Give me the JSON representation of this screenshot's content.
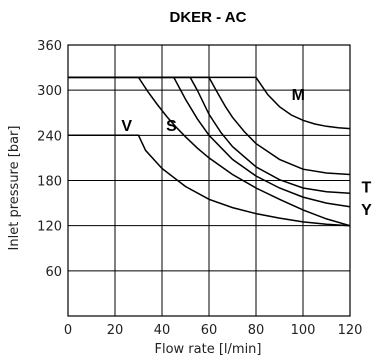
{
  "chart_data": {
    "type": "line",
    "title": "DKER - AC",
    "xlabel": "Flow rate [l/min]",
    "ylabel": "Inlet pressure [bar]",
    "xlim": [
      0,
      120
    ],
    "ylim": [
      0,
      360
    ],
    "xticks": [
      0,
      20,
      40,
      60,
      80,
      100,
      120
    ],
    "yticks": [
      60,
      120,
      180,
      240,
      300,
      360
    ],
    "grid": true,
    "series": [
      {
        "name": "V",
        "x": [
          0,
          30,
          33,
          40,
          50,
          60,
          70,
          80,
          90,
          100,
          110,
          120
        ],
        "y": [
          240,
          240,
          220,
          196,
          172,
          155,
          144,
          136,
          130,
          125,
          122,
          120
        ]
      },
      {
        "name": "S",
        "x": [
          0,
          45,
          50,
          55,
          60,
          70,
          80,
          90,
          100,
          110,
          120
        ],
        "y": [
          317,
          317,
          288,
          262,
          240,
          208,
          186,
          170,
          158,
          150,
          145
        ]
      },
      {
        "name": "",
        "x": [
          0,
          52,
          55,
          60,
          65,
          70,
          80,
          90,
          100,
          110,
          120
        ],
        "y": [
          317,
          317,
          300,
          268,
          244,
          225,
          198,
          181,
          170,
          165,
          163
        ]
      },
      {
        "name": "",
        "x": [
          0,
          60,
          63,
          67,
          70,
          75,
          80,
          90,
          100,
          110,
          120
        ],
        "y": [
          317,
          317,
          300,
          278,
          264,
          245,
          229,
          208,
          195,
          190,
          188
        ]
      },
      {
        "name": "",
        "x": [
          30,
          34,
          38,
          42,
          46,
          50,
          55,
          60,
          70,
          80,
          90,
          100,
          110,
          120
        ],
        "y": [
          317,
          298,
          281,
          265,
          251,
          238,
          223,
          210,
          188,
          170,
          155,
          141,
          129,
          120
        ]
      },
      {
        "name": "M",
        "x": [
          0,
          80,
          85,
          90,
          95,
          100,
          105,
          110,
          115,
          120
        ],
        "y": [
          317,
          317,
          294,
          278,
          267,
          260,
          255,
          252,
          250,
          249
        ]
      }
    ],
    "labels": [
      {
        "text": "V",
        "x": 25,
        "y": 254
      },
      {
        "text": "S",
        "x": 44,
        "y": 254
      },
      {
        "text": "M",
        "x": 98,
        "y": 295
      },
      {
        "text": "T",
        "x": 127,
        "y": 172
      },
      {
        "text": "Y",
        "x": 127,
        "y": 142
      }
    ]
  }
}
